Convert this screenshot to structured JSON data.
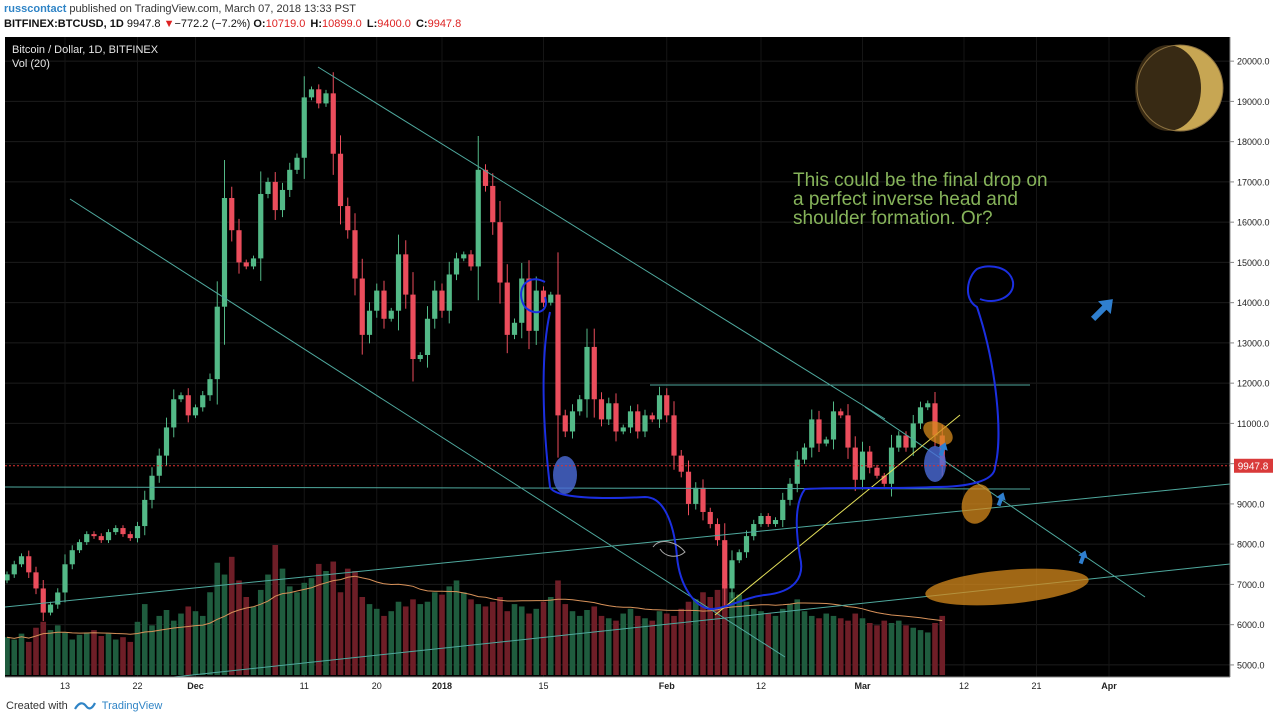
{
  "header": {
    "author": "russcontact",
    "published": "published on TradingView.com, March 07, 2018 13:33 PST",
    "symbol": "BITFINEX:BTCUSD, 1D",
    "last": "9947.8",
    "change": "−772.2 (−7.2%)",
    "ohlc": [
      {
        "label": "O:",
        "value": "10719.0"
      },
      {
        "label": "H:",
        "value": "10899.0"
      },
      {
        "label": "L:",
        "value": "9400.0"
      },
      {
        "label": "C:",
        "value": "9947.8"
      }
    ]
  },
  "footer": {
    "created_with": "Created with",
    "brand": "TradingView"
  },
  "chart_data": {
    "type": "candlestick",
    "title": "Bitcoin / Dollar, 1D, BITFINEX",
    "volume_label": "Vol (20)",
    "annotation": "This could be the final drop on a perfect inverse head and shoulder formation. Or?",
    "last_price": 9947.8,
    "y_ticks": [
      5000,
      6000,
      7000,
      8000,
      9000,
      10000,
      11000,
      12000,
      13000,
      14000,
      15000,
      16000,
      17000,
      18000,
      19000,
      20000
    ],
    "y_range": [
      4700,
      20600
    ],
    "x_labels": [
      "13",
      "22",
      "Dec",
      "11",
      "20",
      "2018",
      "15",
      "Feb",
      "12",
      "Mar",
      "12",
      "21",
      "Apr"
    ],
    "closes": [
      7250,
      7500,
      7700,
      7300,
      6900,
      6300,
      6500,
      6800,
      7500,
      7850,
      8050,
      8250,
      8200,
      8100,
      8300,
      8400,
      8250,
      8150,
      8450,
      9100,
      9700,
      10200,
      10900,
      11600,
      11700,
      11200,
      11400,
      11700,
      12100,
      13900,
      16600,
      15800,
      15000,
      14900,
      15100,
      16700,
      17000,
      16300,
      16800,
      17300,
      17600,
      19100,
      19300,
      18950,
      19200,
      17700,
      16400,
      15800,
      14600,
      13200,
      13800,
      14300,
      13600,
      13800,
      15200,
      14200,
      12600,
      12700,
      13600,
      14300,
      13800,
      14700,
      15100,
      15200,
      14900,
      17300,
      16900,
      16000,
      14500,
      13200,
      13500,
      14600,
      13300,
      14300,
      14000,
      14200,
      11200,
      10800,
      11300,
      11600,
      12900,
      11600,
      11100,
      11500,
      10800,
      10900,
      11300,
      10800,
      11200,
      11100,
      11700,
      11200,
      10200,
      9800,
      9000,
      9400,
      8800,
      8500,
      8100,
      6900,
      7600,
      7800,
      8200,
      8500,
      8700,
      8500,
      8600,
      9100,
      9500,
      10100,
      10400,
      11100,
      10500,
      10600,
      11300,
      11200,
      10400,
      9600,
      10300,
      9900,
      9700,
      9500,
      10400,
      10700,
      10400,
      11000,
      11400,
      11500,
      10700,
      9950
    ],
    "volumes": [
      32,
      30,
      35,
      28,
      40,
      45,
      38,
      42,
      36,
      30,
      34,
      36,
      38,
      33,
      35,
      30,
      32,
      28,
      45,
      60,
      42,
      50,
      55,
      46,
      52,
      58,
      54,
      50,
      70,
      95,
      85,
      100,
      80,
      66,
      58,
      72,
      85,
      110,
      90,
      75,
      70,
      78,
      82,
      94,
      88,
      96,
      70,
      90,
      88,
      66,
      60,
      56,
      50,
      54,
      62,
      58,
      64,
      60,
      62,
      70,
      68,
      75,
      80,
      70,
      64,
      60,
      58,
      62,
      66,
      54,
      60,
      58,
      52,
      56,
      62,
      66,
      80,
      60,
      54,
      50,
      55,
      58,
      50,
      48,
      46,
      52,
      56,
      50,
      48,
      46,
      54,
      52,
      50,
      56,
      62,
      64,
      70,
      66,
      72,
      80,
      70,
      68,
      62,
      56,
      54,
      52,
      50,
      56,
      60,
      64,
      54,
      50,
      48,
      52,
      50,
      48,
      46,
      52,
      48,
      44,
      42,
      46,
      44,
      46,
      42,
      40,
      38,
      36,
      44,
      50
    ]
  }
}
